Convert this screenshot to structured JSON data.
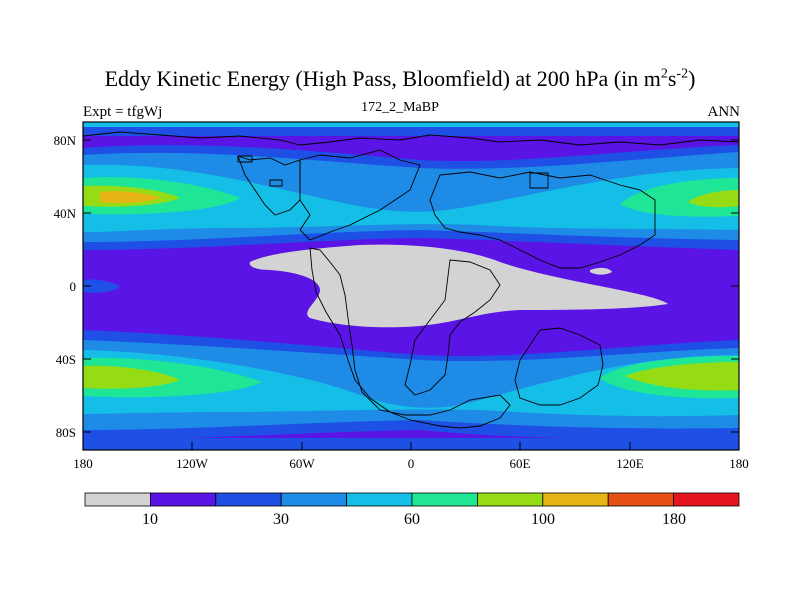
{
  "title": {
    "main": "Eddy Kinetic Energy (High Pass, Bloomfield) at 200 hPa (in m",
    "sup1": "2",
    "mid": "s",
    "sup2": "-2",
    "end": ")"
  },
  "subtitle": "172_2_MaBP",
  "left_label": "Expt = tfgWj",
  "right_label": "ANN",
  "y_ticks": [
    "80N",
    "40N",
    "0",
    "40S",
    "80S"
  ],
  "x_ticks": [
    "180",
    "120W",
    "60W",
    "0",
    "60E",
    "120E",
    "180"
  ],
  "colorbar": {
    "colors": [
      "#d3d3d3",
      "#5a14e6",
      "#1e50e6",
      "#1e8ce6",
      "#14bee6",
      "#1ee696",
      "#96dc14",
      "#e6b414",
      "#e65014",
      "#e6141e"
    ],
    "labels": [
      "10",
      "30",
      "60",
      "100",
      "180"
    ]
  }
}
